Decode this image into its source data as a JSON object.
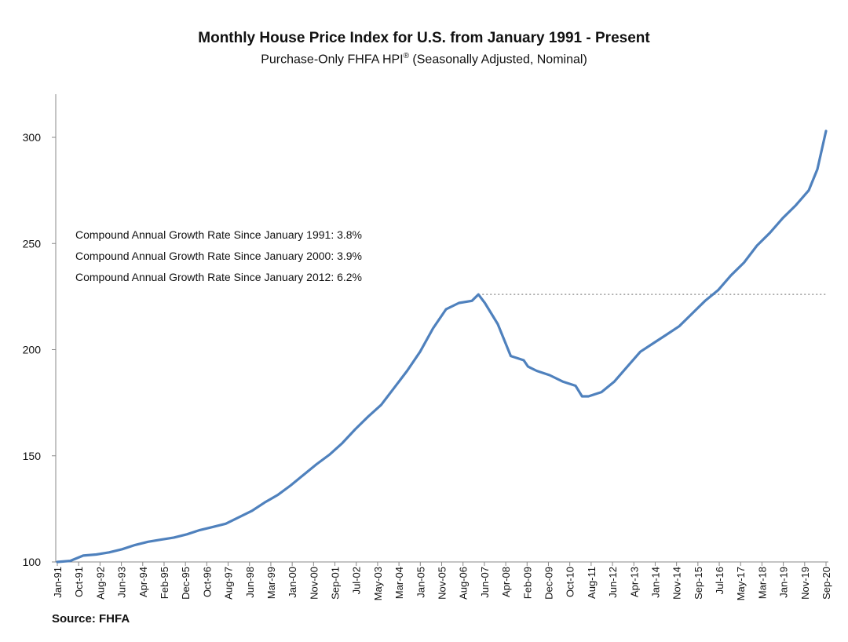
{
  "chart_data": {
    "type": "line",
    "title": "Monthly House Price Index for U.S. from January 1991 - Present",
    "subtitle_main": "Purchase-Only FHFA HPI",
    "subtitle_mark": "®",
    "subtitle_rest": " (Seasonally Adjusted, Nominal)",
    "source": "Source: FHFA",
    "ylim": [
      100,
      320
    ],
    "y_ticks": [
      100,
      150,
      200,
      250,
      300
    ],
    "grid": false,
    "line_color": "#4f81bd",
    "reference_line": {
      "value": 226,
      "from": "2007-04",
      "to": "2020-09",
      "style": "dotted",
      "color": "#999999"
    },
    "x_ticks": [
      "Jan-91",
      "Oct-91",
      "Aug-92",
      "Jun-93",
      "Apr-94",
      "Feb-95",
      "Dec-95",
      "Oct-96",
      "Aug-97",
      "Jun-98",
      "Mar-99",
      "Jan-00",
      "Nov-00",
      "Sep-01",
      "Jul-02",
      "May-03",
      "Mar-04",
      "Jan-05",
      "Nov-05",
      "Aug-06",
      "Jun-07",
      "Apr-08",
      "Feb-09",
      "Dec-09",
      "Oct-10",
      "Aug-11",
      "Jun-12",
      "Apr-13",
      "Jan-14",
      "Nov-14",
      "Sep-15",
      "Jul-16",
      "May-17",
      "Mar-18",
      "Jan-19",
      "Nov-19",
      "Sep-20"
    ],
    "annotations": [
      "Compound Annual Growth Rate Since January 1991:  3.8%",
      "Compound Annual Growth Rate Since January 2000:  3.9%",
      "Compound Annual Growth Rate Since January 2012:  6.2%"
    ],
    "series": [
      {
        "x": [
          "1991-01",
          "1991-07",
          "1992-01",
          "1992-07",
          "1993-01",
          "1993-07",
          "1994-01",
          "1994-07",
          "1995-01",
          "1995-07",
          "1996-01",
          "1996-07",
          "1997-01",
          "1997-07",
          "1998-01",
          "1998-07",
          "1999-01",
          "1999-07",
          "2000-01",
          "2000-07",
          "2001-01",
          "2001-07",
          "2002-01",
          "2002-07",
          "2003-01",
          "2003-07",
          "2004-01",
          "2004-07",
          "2005-01",
          "2005-07",
          "2006-01",
          "2006-07",
          "2007-01",
          "2007-04",
          "2007-07",
          "2008-01",
          "2008-07",
          "2009-01",
          "2009-03",
          "2009-05",
          "2009-07",
          "2010-01",
          "2010-07",
          "2011-01",
          "2011-04",
          "2011-07",
          "2012-01",
          "2012-07",
          "2013-01",
          "2013-07",
          "2014-01",
          "2014-07",
          "2015-01",
          "2015-07",
          "2016-01",
          "2016-07",
          "2017-01",
          "2017-07",
          "2018-01",
          "2018-07",
          "2019-01",
          "2019-07",
          "2020-01",
          "2020-05",
          "2020-09"
        ],
        "values": [
          100,
          100.5,
          103,
          103.5,
          104.5,
          106,
          108,
          109.5,
          110.5,
          111.5,
          113,
          115,
          116.5,
          118,
          121,
          124,
          128,
          131.5,
          136,
          141,
          146,
          150.5,
          156,
          162.5,
          168.5,
          174,
          182,
          190,
          199,
          210,
          219,
          222,
          223,
          226,
          222,
          212,
          197,
          195,
          192,
          191,
          190,
          188,
          185,
          183,
          178,
          178,
          180,
          185,
          192,
          199,
          203,
          207,
          211,
          217,
          223,
          228,
          235,
          241,
          249,
          255,
          262,
          268,
          275,
          285,
          303
        ]
      }
    ]
  }
}
